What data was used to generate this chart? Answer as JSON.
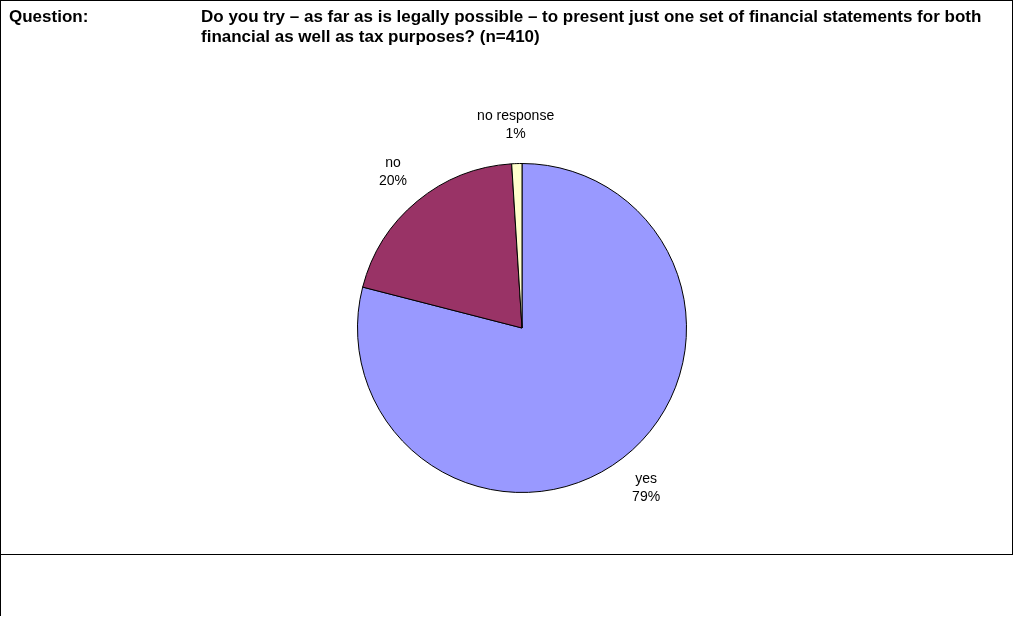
{
  "chart_data": {
    "type": "pie",
    "title": "Do you try – as far as is legally possible – to present just one set of financial statements for both financial as well as tax purposes? (n=410)",
    "annotations": [
      "Question:"
    ],
    "categories": [
      "yes",
      "no",
      "no response"
    ],
    "values": [
      79,
      20,
      1
    ],
    "value_labels": [
      "79%",
      "20%",
      "1%"
    ],
    "colors": [
      "#9999ff",
      "#993366",
      "#ffffcc"
    ],
    "legend": false
  }
}
